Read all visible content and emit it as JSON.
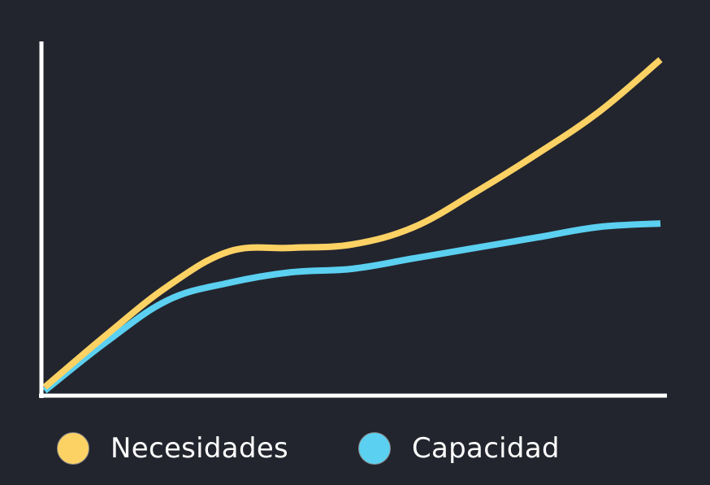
{
  "chart_data": {
    "type": "line",
    "title": "",
    "xlabel": "",
    "ylabel": "",
    "x": [
      0,
      1,
      2,
      3,
      4,
      5,
      6,
      7,
      8,
      9,
      10
    ],
    "xlim": [
      0,
      10
    ],
    "ylim": [
      0,
      100
    ],
    "grid": false,
    "legend_position": "bottom",
    "series": [
      {
        "name": "Necesidades",
        "color": "#fdd264",
        "values": [
          1,
          16,
          30,
          40,
          41,
          42,
          47,
          57,
          68,
          80,
          95
        ]
      },
      {
        "name": "Capacidad",
        "color": "#5bd0f0",
        "values": [
          0,
          14,
          26,
          31,
          34,
          35,
          38,
          41,
          44,
          47,
          48
        ]
      }
    ]
  },
  "axes": {
    "color": "#ffffff"
  },
  "background": "#23252e"
}
